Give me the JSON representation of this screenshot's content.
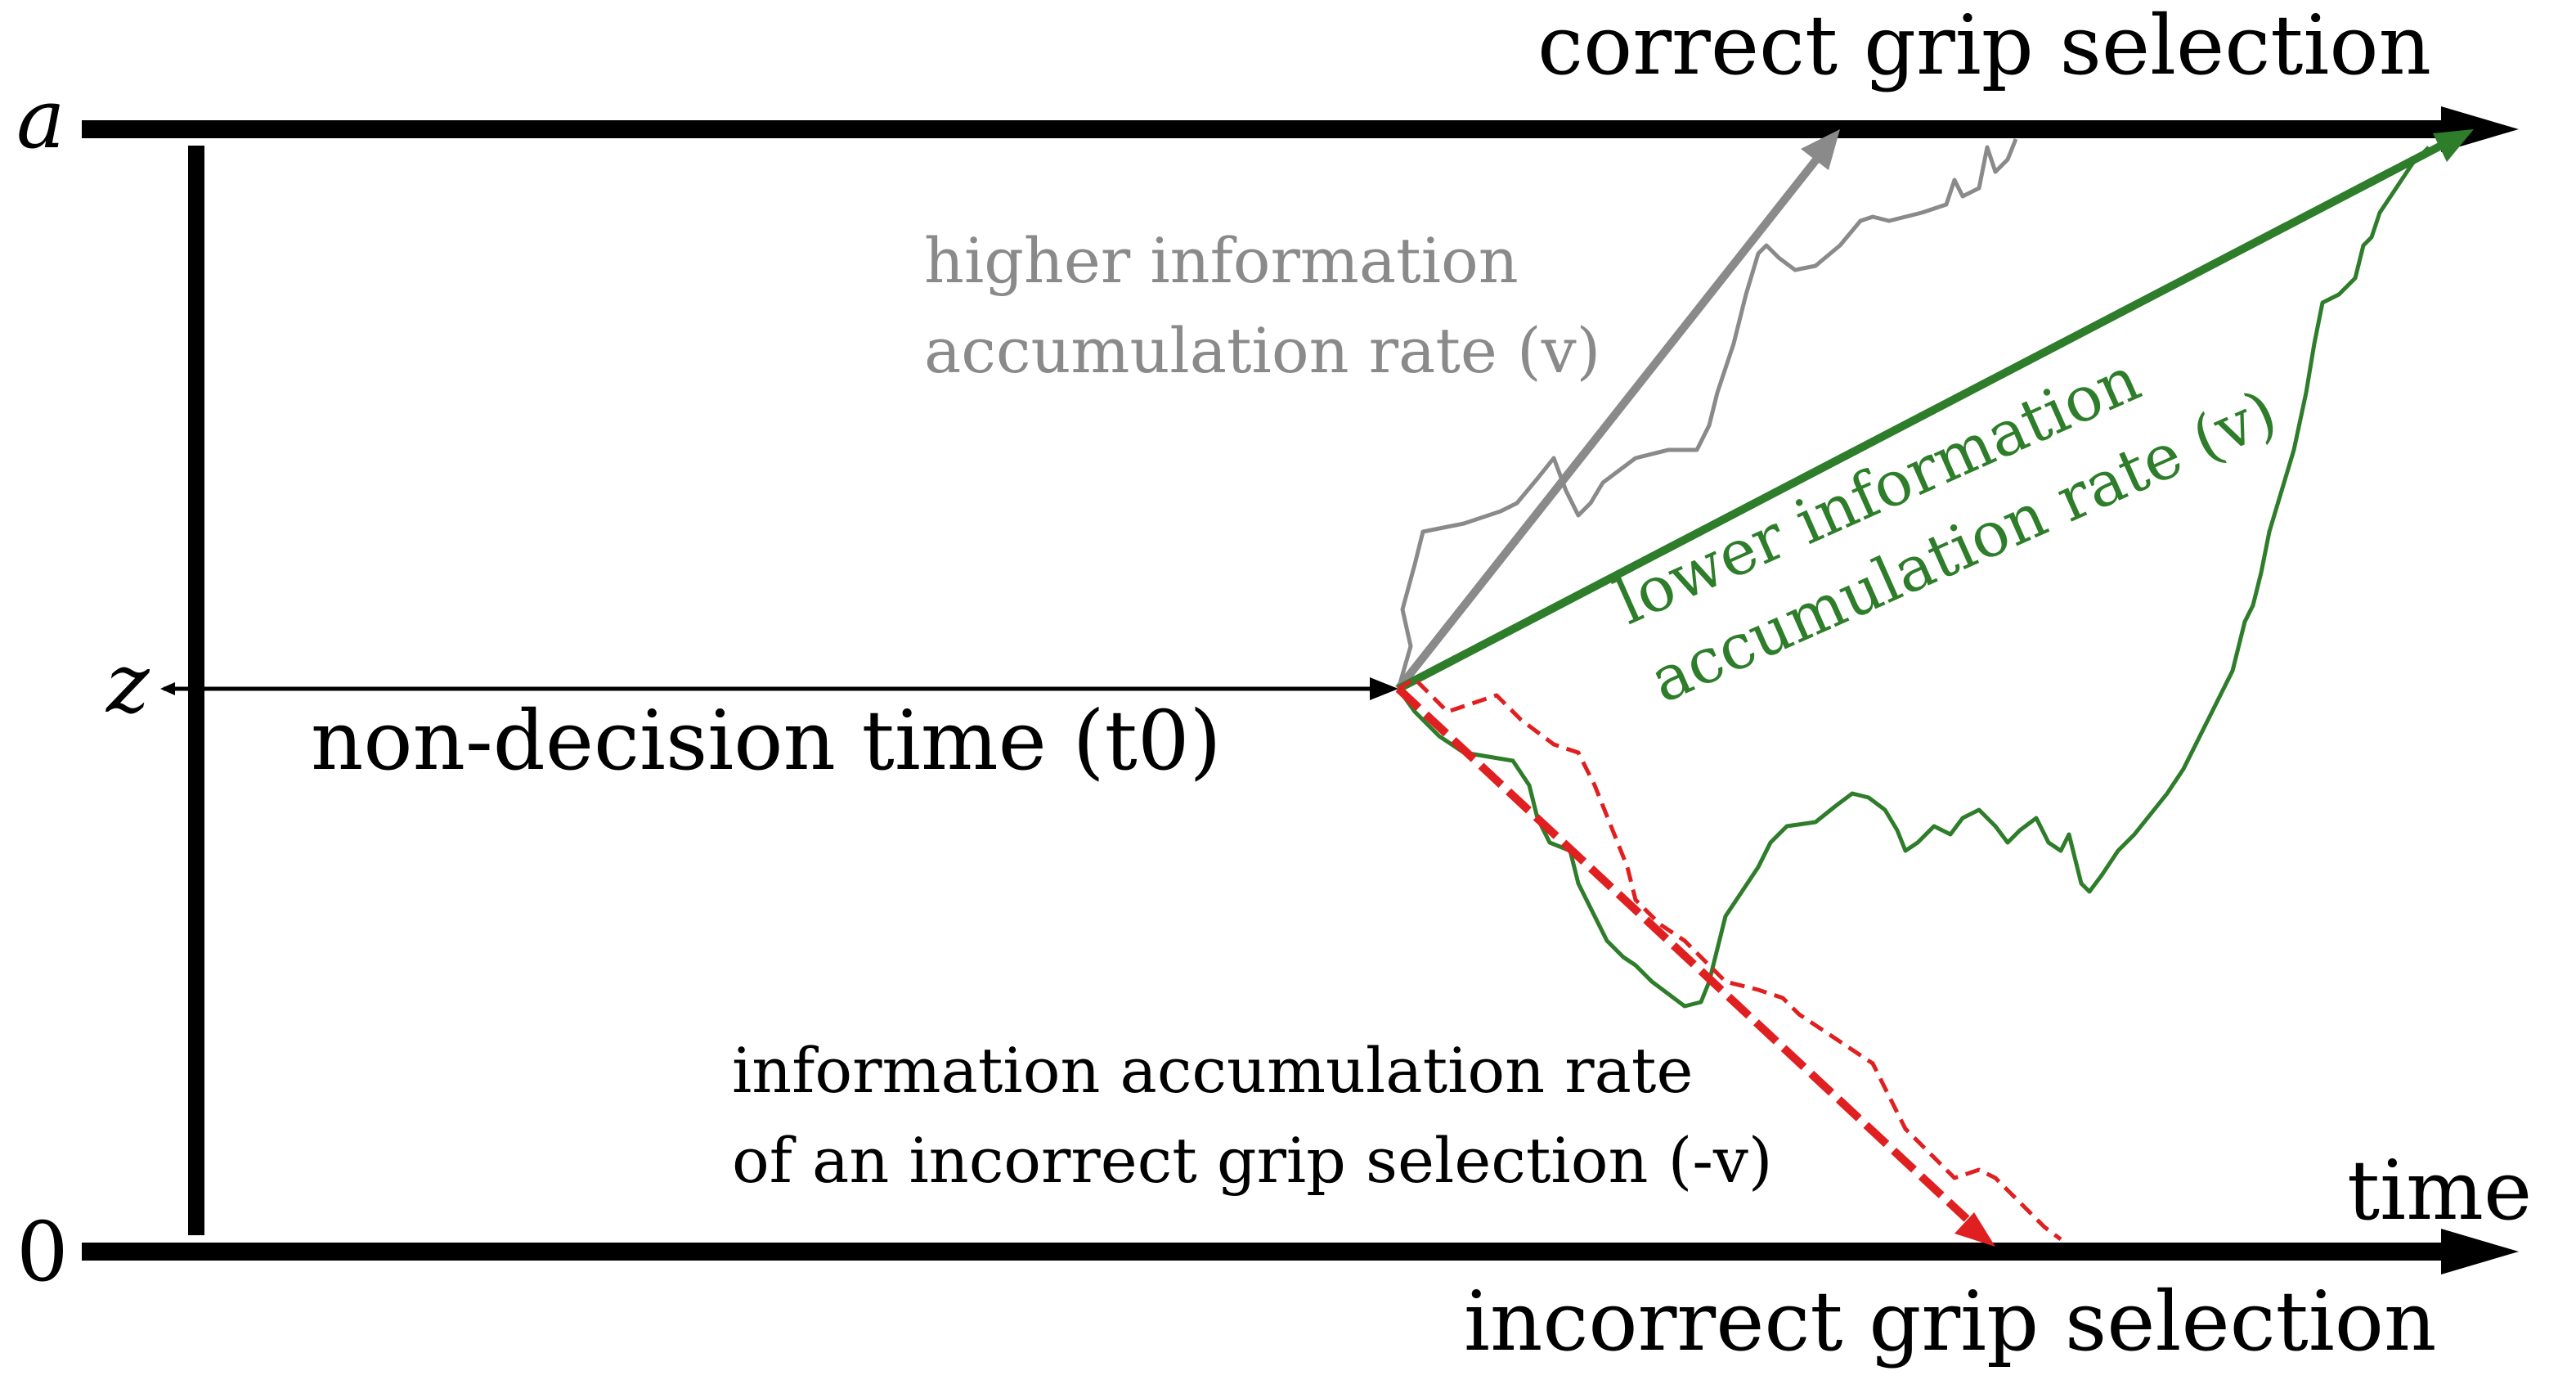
{
  "labels": {
    "top_boundary": "correct grip selection",
    "bottom_boundary": "incorrect grip selection",
    "upper_bound_symbol": "a",
    "lower_bound_symbol": "0",
    "start_point_symbol": "z",
    "time_axis": "time",
    "non_decision_time": "non-decision time (t0)",
    "higher_rate_line1": "higher information",
    "higher_rate_line2": "accumulation rate (v)",
    "lower_rate_line1": "lower information",
    "lower_rate_line2": "accumulation rate (v)",
    "incorrect_rate_line1": "information accumulation rate",
    "incorrect_rate_line2": "of an incorrect grip selection (-v)"
  },
  "colors": {
    "axis": "#000000",
    "higher_rate": "#8a8a8a",
    "lower_rate": "#2e7d2a",
    "incorrect_rate": "#e02020"
  }
}
